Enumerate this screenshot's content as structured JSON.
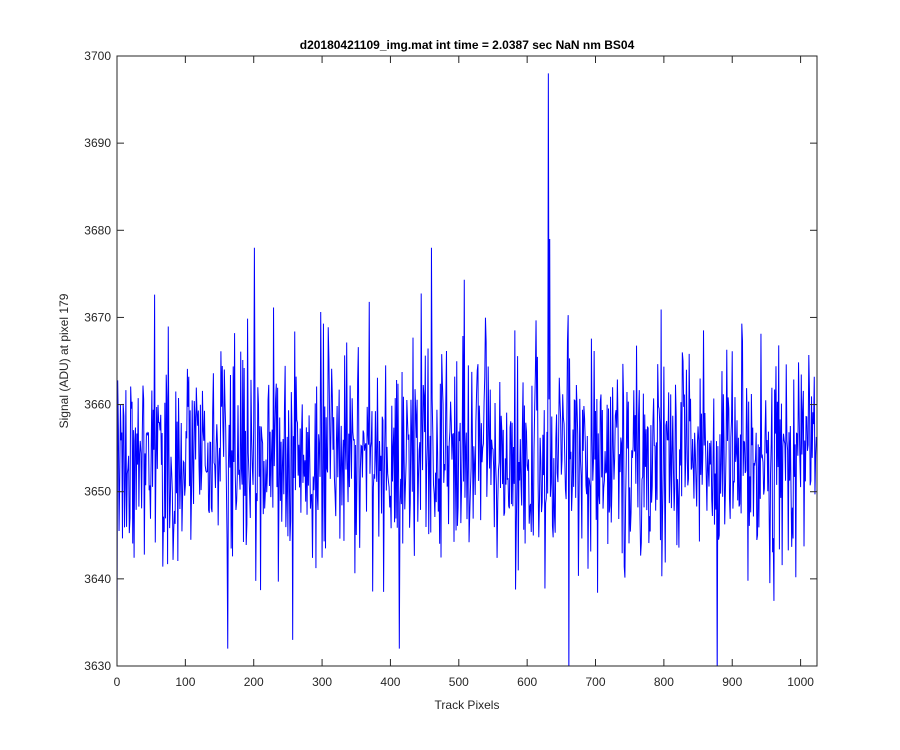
{
  "chart_data": {
    "type": "line",
    "title": "d20180421109_img.mat int time = 2.0387 sec  NaN nm BS04",
    "xlabel": "Track Pixels",
    "ylabel": "Signal (ADU) at pixel 179",
    "xlim": [
      0,
      1024
    ],
    "ylim": [
      3630,
      3700
    ],
    "xticks": [
      0,
      100,
      200,
      300,
      400,
      500,
      600,
      700,
      800,
      900,
      1000
    ],
    "yticks": [
      3630,
      3640,
      3650,
      3660,
      3670,
      3680,
      3690,
      3700
    ],
    "grid": false,
    "legend": "none",
    "series": [
      {
        "color": "#0000ff",
        "mean": 3654,
        "n_points": 1024,
        "range": [
          3628,
          3698
        ],
        "notable_points": [
          {
            "x": 162,
            "y": 3632
          },
          {
            "x": 201,
            "y": 3678
          },
          {
            "x": 257,
            "y": 3633
          },
          {
            "x": 413,
            "y": 3632
          },
          {
            "x": 460,
            "y": 3678
          },
          {
            "x": 631,
            "y": 3698
          },
          {
            "x": 633,
            "y": 3679
          },
          {
            "x": 661,
            "y": 3628
          },
          {
            "x": 878,
            "y": 3628
          }
        ]
      }
    ]
  },
  "colors": {
    "line": "#0000ff",
    "axes": "#262626",
    "background": "#ffffff"
  }
}
